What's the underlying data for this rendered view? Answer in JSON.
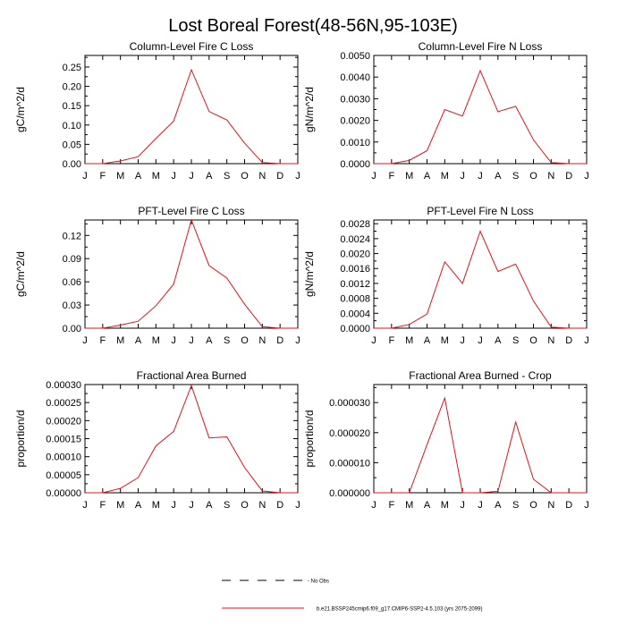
{
  "page": {
    "title": "Lost Boreal Forest(48-56N,95-103E)"
  },
  "colors": {
    "series": "#e8101a",
    "axis": "#000000",
    "obs": "#000000"
  },
  "chart_data": [
    {
      "type": "line",
      "title": "Column-Level Fire C Loss",
      "ylabel": "gC/m^2/d",
      "xlabel": "",
      "categories": [
        "J",
        "F",
        "M",
        "A",
        "M",
        "J",
        "J",
        "A",
        "S",
        "O",
        "N",
        "D",
        "J"
      ],
      "ylim": [
        0,
        0.28
      ],
      "yticks": [
        "0.00",
        "0.05",
        "0.10",
        "0.15",
        "0.20",
        "0.25"
      ],
      "ytick_values": [
        0,
        0.05,
        0.1,
        0.15,
        0.2,
        0.25
      ],
      "series": [
        {
          "name": "b.e21.BSSP245cmip6.f09_g17.CMIP6-SSP2-4.5.103 (yrs 2075-2099)",
          "values": [
            0.0,
            0.0,
            0.007,
            0.018,
            0.065,
            0.11,
            0.243,
            0.135,
            0.113,
            0.053,
            0.003,
            0.0,
            0.0
          ]
        }
      ]
    },
    {
      "type": "line",
      "title": "Column-Level Fire N Loss",
      "ylabel": "gN/m^2/d",
      "xlabel": "",
      "categories": [
        "J",
        "F",
        "M",
        "A",
        "M",
        "J",
        "J",
        "A",
        "S",
        "O",
        "N",
        "D",
        "J"
      ],
      "ylim": [
        0,
        0.005
      ],
      "yticks": [
        "0.0000",
        "0.0010",
        "0.0020",
        "0.0030",
        "0.0040",
        "0.0050"
      ],
      "ytick_values": [
        0,
        0.001,
        0.002,
        0.003,
        0.004,
        0.005
      ],
      "series": [
        {
          "name": "b.e21.BSSP245cmip6.f09_g17.CMIP6-SSP2-4.5.103 (yrs 2075-2099)",
          "values": [
            0.0,
            0.0,
            0.00015,
            0.0006,
            0.0025,
            0.0022,
            0.0043,
            0.0024,
            0.00265,
            0.0011,
            5e-05,
            0.0,
            0.0
          ]
        }
      ]
    },
    {
      "type": "line",
      "title": "PFT-Level Fire C Loss",
      "ylabel": "gC/m^2/d",
      "xlabel": "",
      "categories": [
        "J",
        "F",
        "M",
        "A",
        "M",
        "J",
        "J",
        "A",
        "S",
        "O",
        "N",
        "D",
        "J"
      ],
      "ylim": [
        0,
        0.14
      ],
      "yticks": [
        "0.00",
        "0.03",
        "0.06",
        "0.09",
        "0.12"
      ],
      "ytick_values": [
        0,
        0.03,
        0.06,
        0.09,
        0.12
      ],
      "series": [
        {
          "name": "b.e21.BSSP245cmip6.f09_g17.CMIP6-SSP2-4.5.103 (yrs 2075-2099)",
          "values": [
            0.0,
            0.0,
            0.004,
            0.009,
            0.029,
            0.057,
            0.14,
            0.081,
            0.065,
            0.031,
            0.002,
            0.0,
            0.0
          ]
        }
      ]
    },
    {
      "type": "line",
      "title": "PFT-Level Fire N Loss",
      "ylabel": "gN/m^2/d",
      "xlabel": "",
      "categories": [
        "J",
        "F",
        "M",
        "A",
        "M",
        "J",
        "J",
        "A",
        "S",
        "O",
        "N",
        "D",
        "J"
      ],
      "ylim": [
        0,
        0.0029
      ],
      "yticks": [
        "0.0000",
        "0.0004",
        "0.0008",
        "0.0012",
        "0.0016",
        "0.0020",
        "0.0024",
        "0.0028"
      ],
      "ytick_values": [
        0,
        0.0004,
        0.0008,
        0.0012,
        0.0016,
        0.002,
        0.0024,
        0.0028
      ],
      "series": [
        {
          "name": "b.e21.BSSP245cmip6.f09_g17.CMIP6-SSP2-4.5.103 (yrs 2075-2099)",
          "values": [
            0.0,
            0.0,
            0.0001,
            0.00038,
            0.00178,
            0.0012,
            0.0026,
            0.00152,
            0.00172,
            0.00073,
            3e-05,
            0.0,
            0.0
          ]
        }
      ]
    },
    {
      "type": "line",
      "title": "Fractional Area Burned",
      "ylabel": "proportion/d",
      "xlabel": "",
      "categories": [
        "J",
        "F",
        "M",
        "A",
        "M",
        "J",
        "J",
        "A",
        "S",
        "O",
        "N",
        "D",
        "J"
      ],
      "ylim": [
        0,
        0.0003
      ],
      "yticks": [
        "0.00000",
        "0.00005",
        "0.00010",
        "0.00015",
        "0.00020",
        "0.00025",
        "0.00030"
      ],
      "ytick_values": [
        0,
        5e-05,
        0.0001,
        0.00015,
        0.0002,
        0.00025,
        0.0003
      ],
      "series": [
        {
          "name": "b.e21.BSSP245cmip6.f09_g17.CMIP6-SSP2-4.5.103 (yrs 2075-2099)",
          "values": [
            0.0,
            0.0,
            1.2e-05,
            4.2e-05,
            0.00013,
            0.00017,
            0.000297,
            0.000152,
            0.000155,
            7e-05,
            5e-06,
            0.0,
            0.0
          ]
        }
      ]
    },
    {
      "type": "line",
      "title": "Fractional Area Burned - Crop",
      "ylabel": "proportion/d",
      "xlabel": "",
      "categories": [
        "J",
        "F",
        "M",
        "A",
        "M",
        "J",
        "J",
        "A",
        "S",
        "O",
        "N",
        "D",
        "J"
      ],
      "ylim": [
        0,
        3.6e-05
      ],
      "yticks": [
        "0.000000",
        "0.000010",
        "0.000020",
        "0.000030"
      ],
      "ytick_values": [
        0,
        1e-05,
        2e-05,
        3e-05
      ],
      "series": [
        {
          "name": "b.e21.BSSP245cmip6.f09_g17.CMIP6-SSP2-4.5.103 (yrs 2075-2099)",
          "values": [
            0.0,
            0.0,
            0.0,
            1.6e-05,
            3.15e-05,
            0.0,
            0.0,
            5e-07,
            2.35e-05,
            4.5e-06,
            0.0,
            0.0,
            0.0
          ]
        }
      ]
    }
  ],
  "legend": {
    "obs_label": "- No Obs",
    "model_label": "b.e21.BSSP245cmip6.f09_g17.CMIP6-SSP2-4.5.103 (yrs 2075-2099)"
  }
}
